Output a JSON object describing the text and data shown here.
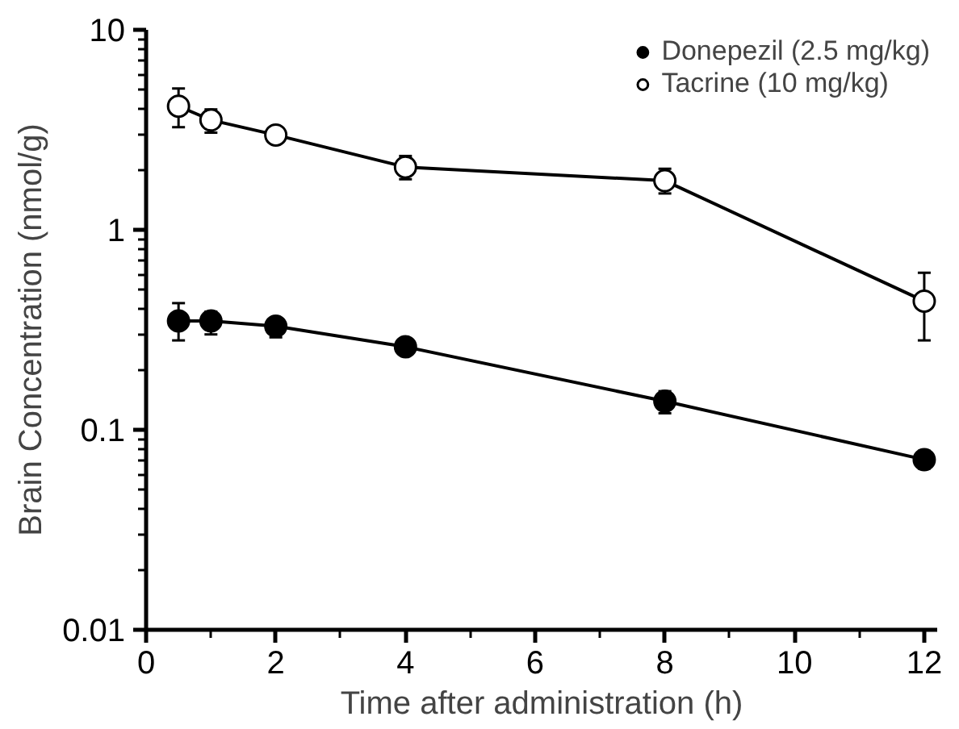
{
  "chart_data": {
    "type": "line",
    "xlabel": "Time after administration (h)",
    "ylabel": "Brain Concentration (nmol/g)",
    "x": [
      0.5,
      1,
      2,
      4,
      8,
      12
    ],
    "series": [
      {
        "name": "Donepezil (2.5 mg/kg)",
        "color": "#000000",
        "colors": [
          "#000000",
          "#000000",
          "#000000",
          "#000000",
          "#000000",
          "#000000"
        ],
        "values": [
          0.35,
          0.35,
          0.33,
          0.26,
          0.139,
          0.071
        ],
        "errors": [
          [
            0.28,
            0.43
          ],
          [
            0.3,
            0.39
          ],
          [
            0.29,
            0.36
          ],
          null,
          [
            0.121,
            0.156
          ],
          [
            0.064,
            0.0785
          ]
        ]
      },
      {
        "name": "Tacrine (10 mg/kg)",
        "color": "#000000",
        "colors": [
          "#ffffff",
          "#ffffff",
          "#ffffff",
          "#ffffff",
          "#ffffff",
          "#ffffff"
        ],
        "values": [
          4.15,
          3.54,
          2.98,
          2.06,
          1.76,
          0.44
        ],
        "errors": [
          [
            3.26,
            5.09
          ],
          [
            3.06,
            4.0
          ],
          null,
          [
            1.79,
            2.34
          ],
          [
            1.52,
            2.02
          ],
          [
            0.28,
            0.61
          ]
        ]
      }
    ],
    "log": "y",
    "xlim": [
      0,
      12.2
    ],
    "ylim": [
      0.01,
      10
    ],
    "xticks": [
      0,
      2,
      4,
      6,
      8,
      10,
      12
    ],
    "yticks": [
      0.01,
      0.1,
      1,
      10
    ],
    "marker": "circle",
    "line_style": "solid",
    "grid": false,
    "legend": "top right"
  }
}
